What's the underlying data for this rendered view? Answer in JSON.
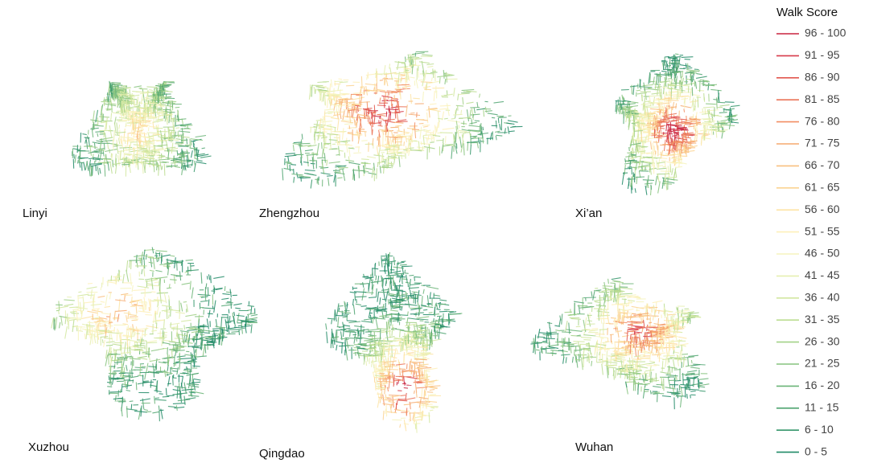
{
  "legend": {
    "title": "Walk Score",
    "items": [
      {
        "label": "96 - 100",
        "color": "#c9243f"
      },
      {
        "label": "91 - 95",
        "color": "#d73a4a"
      },
      {
        "label": "86 - 90",
        "color": "#e2574e"
      },
      {
        "label": "81 - 85",
        "color": "#eb7358"
      },
      {
        "label": "76 - 80",
        "color": "#f28e63"
      },
      {
        "label": "71 - 75",
        "color": "#f6a96f"
      },
      {
        "label": "66 - 70",
        "color": "#f9c07f"
      },
      {
        "label": "61 - 65",
        "color": "#fbd492"
      },
      {
        "label": "56 - 60",
        "color": "#fde4a6"
      },
      {
        "label": "51 - 55",
        "color": "#fef0b9"
      },
      {
        "label": "46 - 50",
        "color": "#f6f3bd"
      },
      {
        "label": "41 - 45",
        "color": "#e6efb0"
      },
      {
        "label": "36 - 40",
        "color": "#d2e7a0"
      },
      {
        "label": "31 - 35",
        "color": "#bcdd92"
      },
      {
        "label": "26 - 30",
        "color": "#a2d187"
      },
      {
        "label": "21 - 25",
        "color": "#86c37e"
      },
      {
        "label": "16 - 20",
        "color": "#6ab477"
      },
      {
        "label": "11 - 15",
        "color": "#4fa571"
      },
      {
        "label": "6 - 10",
        "color": "#35966b"
      },
      {
        "label": "0 - 5",
        "color": "#1f8a66"
      }
    ]
  },
  "maps": [
    {
      "label": "Linyi"
    },
    {
      "label": "Zhengzhou"
    },
    {
      "label": "Xi’an"
    },
    {
      "label": "Xuzhou"
    },
    {
      "label": "Qingdao"
    },
    {
      "label": "Wuhan"
    }
  ]
}
